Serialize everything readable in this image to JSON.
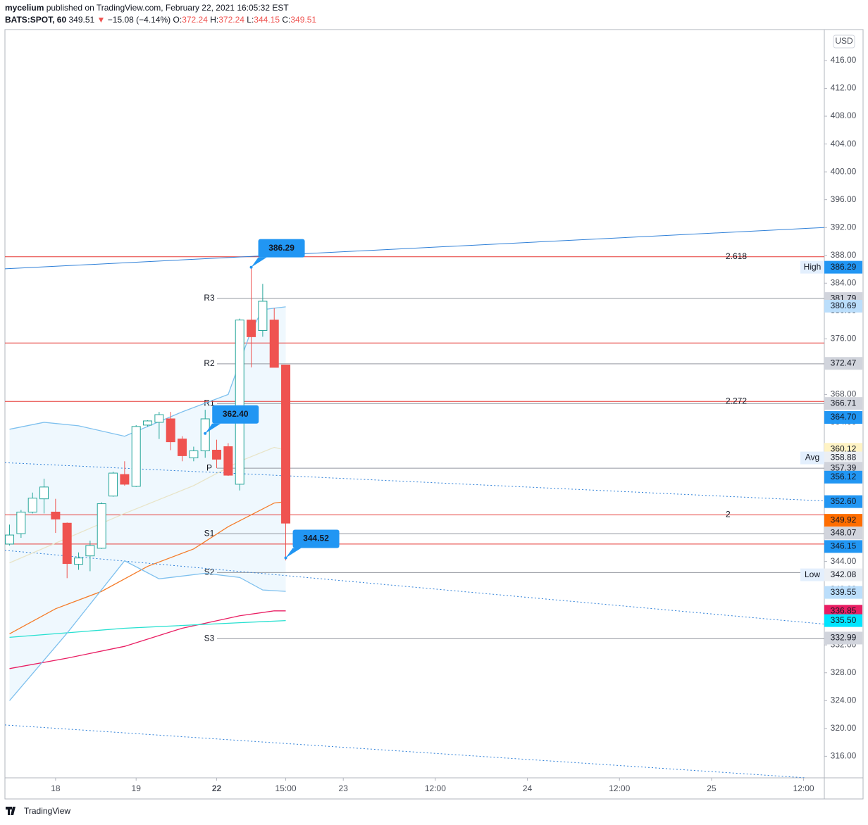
{
  "header": {
    "author": "mycelium",
    "published": "published on TradingView.com, February 22, 2021 16:05:32 EST",
    "symbol": "BATS:SPOT, 60",
    "change_arrow": "▼",
    "change": "−15.08 (−4.14%)",
    "ohlc_labels": [
      "O:",
      "H:",
      "L:",
      "C:"
    ]
  },
  "footer": {
    "brand": "TradingView"
  },
  "chart_data": {
    "type": "candlestick",
    "x": [
      0,
      1,
      2,
      3,
      4,
      5,
      6,
      7,
      8,
      9,
      10,
      11,
      12,
      13,
      14,
      15,
      16,
      17,
      18,
      19,
      20,
      21,
      22,
      23,
      24
    ],
    "open": [
      346.5,
      348.0,
      351.1,
      353.0,
      351.1,
      349.5,
      343.6,
      344.8,
      345.9,
      353.4,
      356.5,
      354.8,
      363.6,
      364.0,
      364.5,
      361.6,
      358.9,
      359.9,
      360.0,
      360.5,
      355.1,
      378.7,
      377.2,
      378.7,
      372.24
    ],
    "high": [
      349.3,
      351.4,
      353.9,
      355.9,
      353.0,
      349.6,
      345.3,
      347.0,
      352.5,
      356.9,
      358.4,
      363.6,
      364.3,
      365.5,
      365.5,
      362.0,
      360.5,
      365.8,
      361.5,
      361.0,
      378.9,
      386.29,
      383.9,
      380.4,
      372.24
    ],
    "low": [
      346.3,
      347.4,
      350.9,
      350.9,
      348.1,
      341.6,
      342.8,
      342.6,
      345.8,
      353.3,
      354.9,
      354.7,
      363.4,
      361.6,
      360.0,
      358.4,
      358.4,
      358.9,
      357.4,
      356.3,
      354.2,
      371.9,
      376.3,
      371.9,
      344.15
    ],
    "close": [
      347.8,
      351.1,
      353.1,
      354.7,
      350.1,
      343.7,
      344.5,
      346.3,
      352.3,
      356.7,
      355.1,
      363.4,
      364.2,
      365.1,
      361.2,
      359.2,
      359.9,
      364.5,
      358.7,
      356.4,
      378.7,
      376.3,
      381.4,
      371.9,
      349.51
    ],
    "up_color": "#26a69a",
    "down_color": "#ef5350",
    "xlim": [
      -0.4,
      70.8
    ],
    "xticks": [
      {
        "value": 4,
        "label": "18"
      },
      {
        "value": 11,
        "label": "19"
      },
      {
        "value": 18,
        "label": "22"
      },
      {
        "value": 24,
        "label": "15:00"
      },
      {
        "value": 29,
        "label": "23"
      },
      {
        "value": 37,
        "label": "12:00"
      },
      {
        "value": 45,
        "label": "24"
      },
      {
        "value": 53,
        "label": "12:00"
      },
      {
        "value": 61,
        "label": "25"
      },
      {
        "value": 69,
        "label": "12:00"
      }
    ],
    "ylim": [
      312.9,
      420.45
    ],
    "yticks": [
      {
        "value": 316,
        "label": "316.00"
      },
      {
        "value": 320,
        "label": "320.00"
      },
      {
        "value": 324,
        "label": "324.00"
      },
      {
        "value": 328,
        "label": "328.00"
      },
      {
        "value": 332,
        "label": "332.00"
      },
      {
        "value": 336,
        "label": "336.00"
      },
      {
        "value": 340,
        "label": "340.00"
      },
      {
        "value": 344,
        "label": "344.00"
      },
      {
        "value": 348,
        "label": "348.00"
      },
      {
        "value": 352,
        "label": "352.00"
      },
      {
        "value": 356,
        "label": "356.00"
      },
      {
        "value": 360,
        "label": "360.00"
      },
      {
        "value": 364,
        "label": "364.00"
      },
      {
        "value": 368,
        "label": "368.00"
      },
      {
        "value": 372,
        "label": "372.00"
      },
      {
        "value": 376,
        "label": "376.00"
      },
      {
        "value": 380,
        "label": "380.00"
      },
      {
        "value": 384,
        "label": "384.00"
      },
      {
        "value": 388,
        "label": "388.00"
      },
      {
        "value": 392,
        "label": "392.00"
      },
      {
        "value": 396,
        "label": "396.00"
      },
      {
        "value": 400,
        "label": "400.00"
      },
      {
        "value": 404,
        "label": "404.00"
      },
      {
        "value": 408,
        "label": "408.00"
      },
      {
        "value": 412,
        "label": "412.00"
      },
      {
        "value": 416,
        "label": "416.00"
      }
    ],
    "currency": "USD",
    "lines": [
      {
        "color": "#f57c2a",
        "x": [
          0,
          4,
          8,
          12,
          16,
          19,
          23,
          24
        ],
        "values": [
          333.6,
          337.2,
          339.7,
          343.3,
          345.8,
          349.0,
          352.4,
          352.6
        ]
      },
      {
        "color": "#e91e63",
        "x": [
          0,
          5,
          10,
          15,
          20,
          23,
          24
        ],
        "values": [
          328.6,
          330.1,
          331.8,
          334.4,
          336.2,
          336.9,
          336.9
        ]
      },
      {
        "color": "#26e0d0",
        "x": [
          0,
          10,
          20,
          24
        ],
        "values": [
          333.1,
          334.4,
          335.2,
          335.5
        ]
      },
      {
        "color": "#7ec0ee",
        "x": [
          0,
          3,
          6,
          10,
          15,
          19,
          21,
          22,
          24
        ],
        "values": [
          363.0,
          364.0,
          363.5,
          362.0,
          365.5,
          368.0,
          377.2,
          380.2,
          380.6
        ]
      },
      {
        "color": "#7ec0ee",
        "x": [
          0,
          5,
          10,
          13,
          17,
          20,
          22,
          24
        ],
        "values": [
          324.0,
          333.7,
          344.1,
          341.5,
          342.3,
          341.7,
          339.9,
          339.7
        ]
      },
      {
        "color": "#e8e4c8",
        "x": [
          0,
          10,
          16,
          20,
          23,
          24
        ],
        "values": [
          343.8,
          350.9,
          354.9,
          358.4,
          360.4,
          360.0
        ]
      }
    ],
    "trendlines": [
      {
        "color": "#2f80d8",
        "style": "solid",
        "x": [
          -0.4,
          70.8
        ],
        "values": [
          386.06,
          392.0
        ]
      },
      {
        "color": "#2f80d8",
        "style": "dotted",
        "x": [
          -0.4,
          70.8
        ],
        "values": [
          358.2,
          352.7
        ]
      },
      {
        "color": "#2f80d8",
        "style": "dotted",
        "x": [
          -0.4,
          70.8
        ],
        "values": [
          345.6,
          335.0
        ]
      },
      {
        "color": "#2f80d8",
        "style": "dotted",
        "x": [
          -0.4,
          69.2
        ],
        "values": [
          320.5,
          312.9
        ]
      }
    ],
    "fib_levels": [
      {
        "value": 387.8,
        "label": "2.618"
      },
      {
        "value": 375.4
      },
      {
        "value": 367.0,
        "label": "2.272"
      },
      {
        "value": 350.7,
        "label": "2"
      },
      {
        "value": 346.5
      }
    ],
    "fib_color": "#e53935",
    "pivots": [
      {
        "value": 381.8,
        "label": "R3"
      },
      {
        "value": 372.4,
        "label": "R2"
      },
      {
        "value": 366.7,
        "label": "R1"
      },
      {
        "value": 357.4,
        "label": "P"
      },
      {
        "value": 348.0,
        "label": "S1"
      },
      {
        "value": 342.4,
        "label": "S2"
      },
      {
        "value": 332.9,
        "label": "S3"
      }
    ],
    "price_tags": [
      {
        "value": 386.29,
        "label": "386.29",
        "name": "High",
        "color": "#2196f3",
        "text_color": "#ffffff"
      },
      {
        "value": 381.79,
        "label": "381.79",
        "color": "#d1d4dc",
        "text_color": "#131722"
      },
      {
        "value": 380.69,
        "label": "380.69",
        "color": "#bbdefb",
        "text_color": "#131722"
      },
      {
        "value": 372.47,
        "label": "372.47",
        "color": "#d1d4dc",
        "text_color": "#131722"
      },
      {
        "value": 366.71,
        "label": "366.71",
        "color": "#d1d4dc",
        "text_color": "#131722"
      },
      {
        "value": 364.7,
        "label": "364.70",
        "color": "#2196f3",
        "text_color": "#ffffff"
      },
      {
        "value": 360.12,
        "label": "360.12",
        "color": "#fff3c4",
        "text_color": "#131722"
      },
      {
        "value": 358.88,
        "label": "358.88",
        "name": "Avg",
        "color": "#eceff3",
        "text_color": "#131722"
      },
      {
        "value": 357.39,
        "label": "357.39",
        "color": "#d1d4dc",
        "text_color": "#131722"
      },
      {
        "value": 356.12,
        "label": "356.12",
        "color": "#2196f3",
        "text_color": "#ffffff"
      },
      {
        "value": 352.6,
        "label": "352.60",
        "color": "#2196f3",
        "text_color": "#ffffff"
      },
      {
        "value": 349.92,
        "label": "349.92",
        "color": "#ff6d00",
        "text_color": "#ffffff"
      },
      {
        "value": 348.07,
        "label": "348.07",
        "color": "#d1d4dc",
        "text_color": "#131722"
      },
      {
        "value": 346.15,
        "label": "346.15",
        "color": "#2196f3",
        "text_color": "#ffffff"
      },
      {
        "value": 342.08,
        "label": "342.08",
        "name": "Low",
        "color": "#eceff3",
        "text_color": "#131722"
      },
      {
        "value": 339.55,
        "label": "339.55",
        "color": "#bbdefb",
        "text_color": "#131722"
      },
      {
        "value": 336.85,
        "label": "336.85",
        "color": "#e91e63",
        "text_color": "#ffffff"
      },
      {
        "value": 335.5,
        "label": "335.50",
        "color": "#00e5ff",
        "text_color": "#131722"
      },
      {
        "value": 332.99,
        "label": "332.99",
        "color": "#d1d4dc",
        "text_color": "#131722"
      }
    ],
    "callouts": [
      {
        "x": 21,
        "value": 386.29,
        "label": "386.29"
      },
      {
        "x": 17,
        "value": 362.4,
        "label": "362.40"
      },
      {
        "x": 24,
        "value": 344.52,
        "label": "344.52"
      }
    ],
    "callout_color": "#2196f3"
  }
}
